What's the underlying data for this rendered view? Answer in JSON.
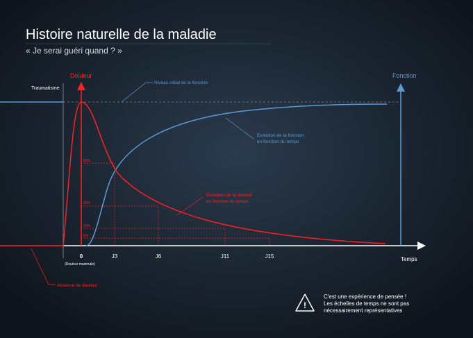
{
  "header": {
    "title": "Histoire naturelle de la maladie",
    "subtitle": "« Je serai guéri quand ? »"
  },
  "axes": {
    "pain_axis": "Douleur",
    "function_axis": "Fonction",
    "time_axis": "Temps",
    "event": "Traumatisme"
  },
  "time_marks": {
    "origin": "0",
    "origin_note": "(Douleur maximale)",
    "labels": [
      "J3",
      "J6",
      "J11",
      "J15"
    ]
  },
  "pain_levels": [
    "50%",
    "25%",
    "10%",
    "5%"
  ],
  "annotations": {
    "initial_function": "Niveau initial de la fonction",
    "function_evolution": [
      "Evolution de la fonction",
      "en fonction du temps"
    ],
    "pain_evolution": [
      "Evolution de la douleur",
      "en fonction du temps"
    ],
    "no_pain": "Absence de douleur"
  },
  "warning": {
    "lines": [
      "C'est une expérience de pensée !",
      "Les échelles de temps ne sont pas",
      "nécessairement représentatives"
    ]
  }
}
